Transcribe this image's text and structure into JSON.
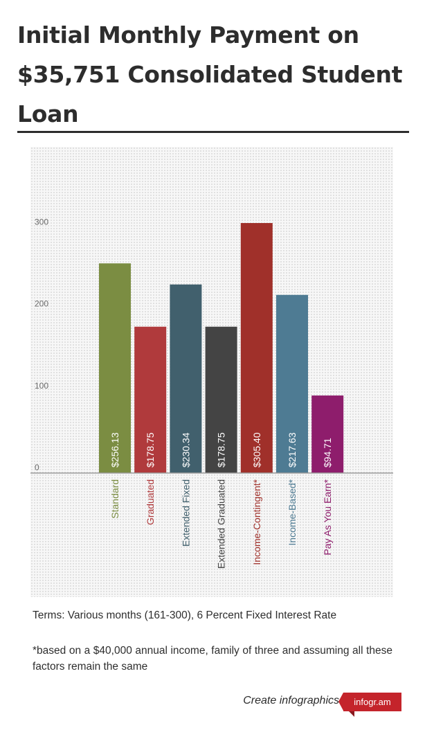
{
  "chart_data": {
    "type": "bar",
    "title": "Initial Monthly Payment on $35,751 Consolidated Student Loan",
    "categories": [
      "Standard",
      "Graduated",
      "Extended Fixed",
      "Extended Graduated",
      "Income-Contingent*",
      "Income-Based*",
      "Pay As You Earn*"
    ],
    "values": [
      256.13,
      178.75,
      230.34,
      178.75,
      305.4,
      217.63,
      94.71
    ],
    "value_labels": [
      "$256.13",
      "$178.75",
      "$230.34",
      "$178.75",
      "$305.40",
      "$217.63",
      "$94.71"
    ],
    "colors": [
      "#7b8d42",
      "#b03a3c",
      "#41606d",
      "#444444",
      "#a0302a",
      "#4e7b93",
      "#8e1d6c"
    ],
    "yticks": [
      0,
      100,
      200,
      300
    ],
    "ylim": [
      0,
      400
    ],
    "grid": false,
    "legend": "none"
  },
  "notes": {
    "terms": "Terms: Various months (161-300), 6 Percent Fixed Interest Rate",
    "footnote": "*based on a $40,000 annual income, family of three and assuming all these factors remain the same"
  },
  "branding": {
    "create_text": "Create infographics",
    "badge": "infogr.am",
    "accent": "#c4242b"
  }
}
